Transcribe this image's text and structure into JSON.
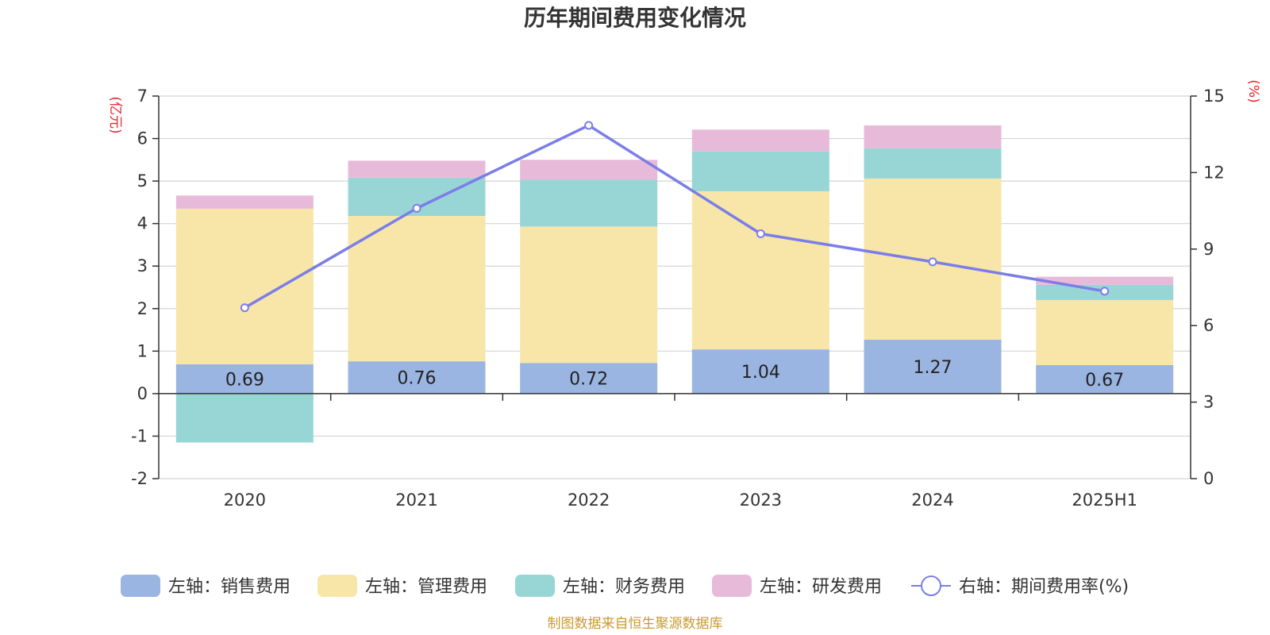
{
  "chart_data": {
    "type": "bar",
    "title": "历年期间费用变化情况",
    "categories": [
      "2020",
      "2021",
      "2022",
      "2023",
      "2024",
      "2025H1"
    ],
    "y_left": {
      "unit": "(亿元)",
      "range": [
        -2,
        7
      ],
      "ticks": [
        "-2",
        "-1",
        "0",
        "1",
        "2",
        "3",
        "4",
        "5",
        "6",
        "7"
      ]
    },
    "y_right": {
      "unit": "(%)",
      "range": [
        0,
        15
      ],
      "ticks": [
        "0",
        "3",
        "6",
        "9",
        "12",
        "15"
      ]
    },
    "series": [
      {
        "name": "左轴：销售费用",
        "type": "stacked-bar",
        "axis": "left",
        "color": "#9ab5e1",
        "values": [
          0.69,
          0.76,
          0.72,
          1.04,
          1.27,
          0.67
        ],
        "labels": [
          "0.69",
          "0.76",
          "0.72",
          "1.04",
          "1.27",
          "0.67"
        ]
      },
      {
        "name": "左轴：管理费用",
        "type": "stacked-bar",
        "axis": "left",
        "color": "#f7e6a8",
        "values": [
          3.66,
          3.42,
          3.21,
          3.72,
          3.79,
          1.53
        ]
      },
      {
        "name": "左轴：财务费用",
        "type": "stacked-bar",
        "axis": "left",
        "color": "#98d5d5",
        "values": [
          -1.15,
          0.9,
          1.1,
          0.94,
          0.71,
          0.36
        ]
      },
      {
        "name": "左轴：研发费用",
        "type": "stacked-bar",
        "axis": "left",
        "color": "#e8bada",
        "values": [
          0.31,
          0.4,
          0.47,
          0.51,
          0.54,
          0.19
        ]
      },
      {
        "name": "右轴：期间费用率(%)",
        "type": "line",
        "axis": "right",
        "color": "#7b7ee8",
        "values": [
          6.7,
          10.6,
          13.85,
          9.6,
          8.5,
          7.35
        ]
      }
    ],
    "grid": true,
    "legend": "bottom-center",
    "source": "制图数据来自恒生聚源数据库"
  }
}
